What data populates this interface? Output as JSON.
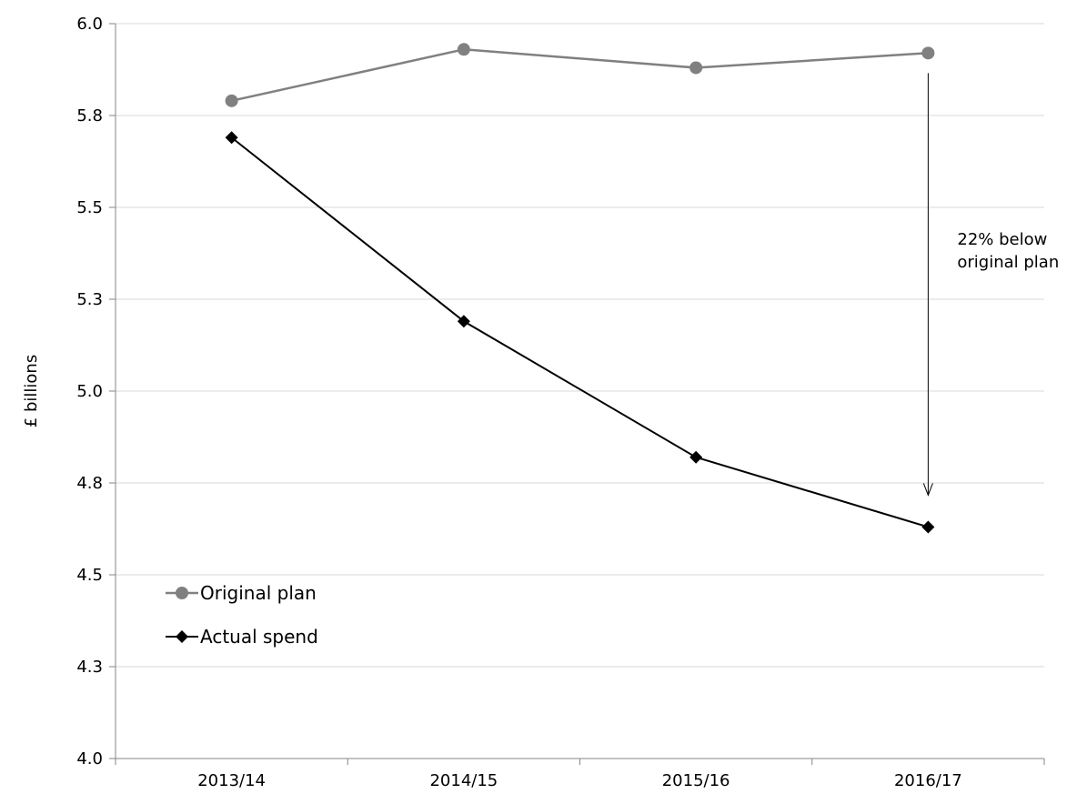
{
  "chart_data": {
    "type": "line",
    "categories": [
      "2013/14",
      "2014/15",
      "2015/16",
      "2016/17"
    ],
    "series": [
      {
        "name": "Original plan",
        "values": [
          5.79,
          5.93,
          5.88,
          5.92
        ],
        "color": "#808080",
        "marker": "circle"
      },
      {
        "name": "Actual spend",
        "values": [
          5.69,
          5.19,
          4.82,
          4.63
        ],
        "color": "#000000",
        "marker": "diamond"
      }
    ],
    "title": "",
    "xlabel": "",
    "ylabel": "£ billions",
    "ylim": [
      4.0,
      6.0
    ],
    "yticks": [
      4.0,
      4.25,
      4.5,
      4.75,
      5.0,
      5.25,
      5.5,
      5.75,
      6.0
    ],
    "ytick_labels": [
      "4.0",
      "4.3",
      "4.5",
      "4.8",
      "5.0",
      "5.3",
      "5.5",
      "5.8",
      "6.0"
    ],
    "grid": true,
    "legend_position": "bottom-left",
    "annotation": {
      "lines": [
        "22% below",
        "original plan"
      ],
      "category": "2016/17"
    }
  }
}
